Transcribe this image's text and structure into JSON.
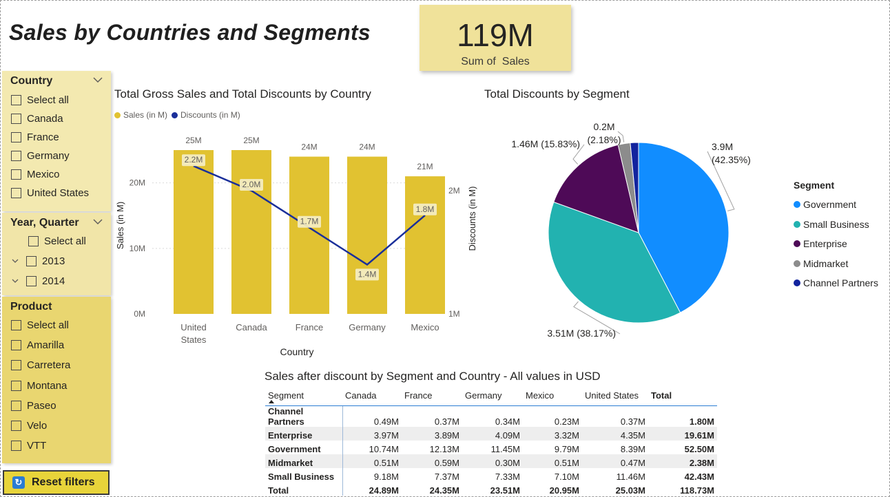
{
  "page": {
    "title": "Sales by Countries and Segments"
  },
  "kpi": {
    "value": "119M",
    "label": "Sum of  Sales"
  },
  "slicers": {
    "country": {
      "header": "Country",
      "items": [
        "Select all",
        "Canada",
        "France",
        "Germany",
        "Mexico",
        "United States"
      ]
    },
    "year_quarter": {
      "header": "Year, Quarter",
      "items": [
        "Select all",
        "2013",
        "2014"
      ]
    },
    "product": {
      "header": "Product",
      "items": [
        "Select all",
        "Amarilla",
        "Carretera",
        "Montana",
        "Paseo",
        "Velo",
        "VTT"
      ]
    }
  },
  "reset_button": {
    "label": "Reset filters"
  },
  "icons": [
    "chevron-down-icon",
    "checkbox-icon",
    "expand-icon",
    "reset-icon",
    "sort-ascending-icon"
  ],
  "colors": {
    "sales": "#e1c231",
    "discounts": "#1a2f9a",
    "government": "#118dff",
    "small_business": "#22b2b0",
    "enterprise": "#4e0a57",
    "midmarket": "#8c8c8c",
    "channel_partners": "#12239e",
    "kpi_bg": "#f0e29a"
  },
  "chart_data": [
    {
      "type": "bar",
      "title": "Total Gross Sales and Total Discounts by Country",
      "xlabel": "Country",
      "ylabel": "Sales (in M)",
      "y2label": "Discounts (in M)",
      "categories": [
        "United States",
        "Canada",
        "France",
        "Germany",
        "Mexico"
      ],
      "ylim": [
        0,
        25
      ],
      "y_ticks": [
        "0M",
        "10M",
        "20M"
      ],
      "y2lim": [
        1,
        2.3
      ],
      "y2_ticks": [
        "1M",
        "2M"
      ],
      "grid": true,
      "legend_position": "top-left",
      "series": [
        {
          "name": "Sales (in M)",
          "kind": "bar",
          "values": [
            25,
            25,
            24,
            24,
            21
          ],
          "labels": [
            "25M",
            "25M",
            "24M",
            "24M",
            "21M"
          ]
        },
        {
          "name": "Discounts (in M)",
          "kind": "line",
          "axis": "secondary",
          "values": [
            2.2,
            2.0,
            1.7,
            1.4,
            1.8
          ],
          "labels": [
            "2.2M",
            "2.0M",
            "1.7M",
            "1.4M",
            "1.8M"
          ]
        }
      ]
    },
    {
      "type": "pie",
      "title": "Total Discounts by Segment",
      "legend_title": "Segment",
      "legend_position": "right",
      "slices": [
        {
          "name": "Government",
          "value": 3.9,
          "percent": 42.35,
          "label_value": "3.9M",
          "label_percent": "(42.35%)"
        },
        {
          "name": "Small Business",
          "value": 3.51,
          "percent": 38.17,
          "label_value": "3.51M (38.17%)",
          "label_percent": ""
        },
        {
          "name": "Enterprise",
          "value": 1.46,
          "percent": 15.83,
          "label_value": "1.46M (15.83%)",
          "label_percent": ""
        },
        {
          "name": "Midmarket",
          "value": 0.2,
          "percent": 2.18,
          "label_value": "0.2M",
          "label_percent": "(2.18%)"
        },
        {
          "name": "Channel Partners",
          "value": 0.14,
          "percent": 1.47,
          "label_value": "",
          "label_percent": ""
        }
      ]
    },
    {
      "type": "table",
      "title": "Sales after discount by Segment and Country - All values in USD",
      "columns": [
        "Segment",
        "Canada",
        "France",
        "Germany",
        "Mexico",
        "United States",
        "Total"
      ],
      "rows": [
        [
          "Channel Partners",
          "0.49M",
          "0.37M",
          "0.34M",
          "0.23M",
          "0.37M",
          "1.80M"
        ],
        [
          "Enterprise",
          "3.97M",
          "3.89M",
          "4.09M",
          "3.32M",
          "4.35M",
          "19.61M"
        ],
        [
          "Government",
          "10.74M",
          "12.13M",
          "11.45M",
          "9.79M",
          "8.39M",
          "52.50M"
        ],
        [
          "Midmarket",
          "0.51M",
          "0.59M",
          "0.30M",
          "0.51M",
          "0.47M",
          "2.38M"
        ],
        [
          "Small Business",
          "9.18M",
          "7.37M",
          "7.33M",
          "7.10M",
          "11.46M",
          "42.43M"
        ],
        [
          "Total",
          "24.89M",
          "24.35M",
          "23.51M",
          "20.95M",
          "25.03M",
          "118.73M"
        ]
      ]
    }
  ]
}
